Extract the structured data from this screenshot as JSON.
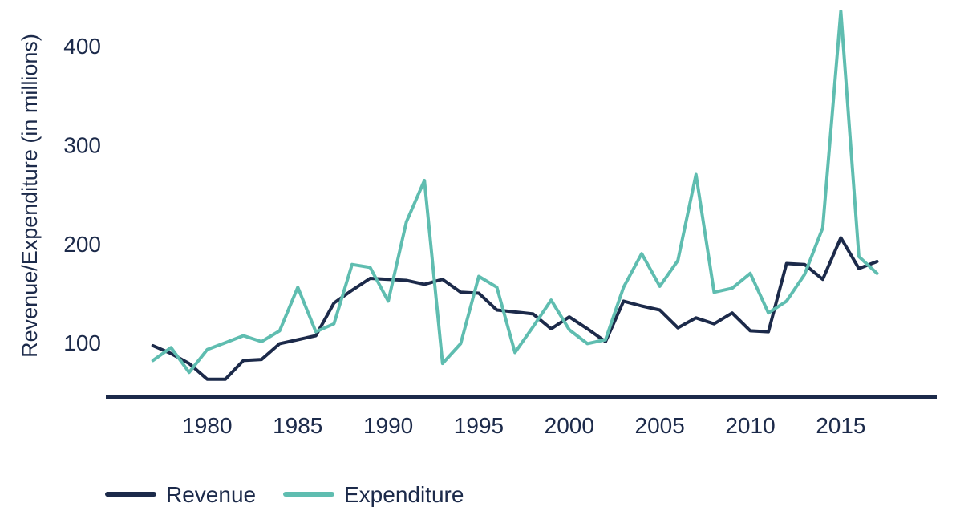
{
  "chart_data": {
    "type": "line",
    "title": "",
    "xlabel": "",
    "ylabel": "Revenue/Expenditure (in millions)",
    "x": [
      1977,
      1978,
      1979,
      1980,
      1981,
      1982,
      1983,
      1984,
      1985,
      1986,
      1987,
      1988,
      1989,
      1990,
      1991,
      1992,
      1993,
      1994,
      1995,
      1996,
      1997,
      1998,
      1999,
      2000,
      2001,
      2002,
      2003,
      2004,
      2005,
      2006,
      2007,
      2008,
      2009,
      2010,
      2011,
      2012,
      2013,
      2014,
      2015,
      2016,
      2017
    ],
    "xticks": [
      1980,
      1985,
      1990,
      1995,
      2000,
      2005,
      2010,
      2015
    ],
    "xtick_labels": [
      "1980",
      "1985",
      "1990",
      "1995",
      "2000",
      "2005",
      "2010",
      "2015"
    ],
    "yticks": [
      100,
      200,
      300,
      400
    ],
    "ytick_labels": [
      "100",
      "200",
      "300",
      "400"
    ],
    "xlim": [
      1974.4,
      2020.3
    ],
    "ylim": [
      45,
      435
    ],
    "grid": false,
    "legend_position": "bottom-left",
    "series": [
      {
        "name": "Revenue",
        "color": "#1c2a4a",
        "values": [
          97,
          89,
          79,
          63,
          63,
          82,
          83,
          99,
          103,
          107,
          140,
          153,
          165,
          164,
          163,
          159,
          164,
          151,
          150,
          133,
          131,
          129,
          114,
          126,
          114,
          101,
          142,
          137,
          133,
          115,
          125,
          119,
          130,
          112,
          111,
          180,
          179,
          164,
          206,
          175,
          182
        ]
      },
      {
        "name": "Expenditure",
        "color": "#5fbdb0",
        "values": [
          82,
          95,
          70,
          93,
          100,
          107,
          101,
          112,
          156,
          111,
          119,
          179,
          176,
          142,
          222,
          264,
          79,
          99,
          167,
          156,
          90,
          116,
          143,
          113,
          99,
          103,
          156,
          190,
          157,
          183,
          270,
          151,
          155,
          170,
          130,
          142,
          169,
          216,
          435,
          187,
          170
        ]
      }
    ]
  }
}
